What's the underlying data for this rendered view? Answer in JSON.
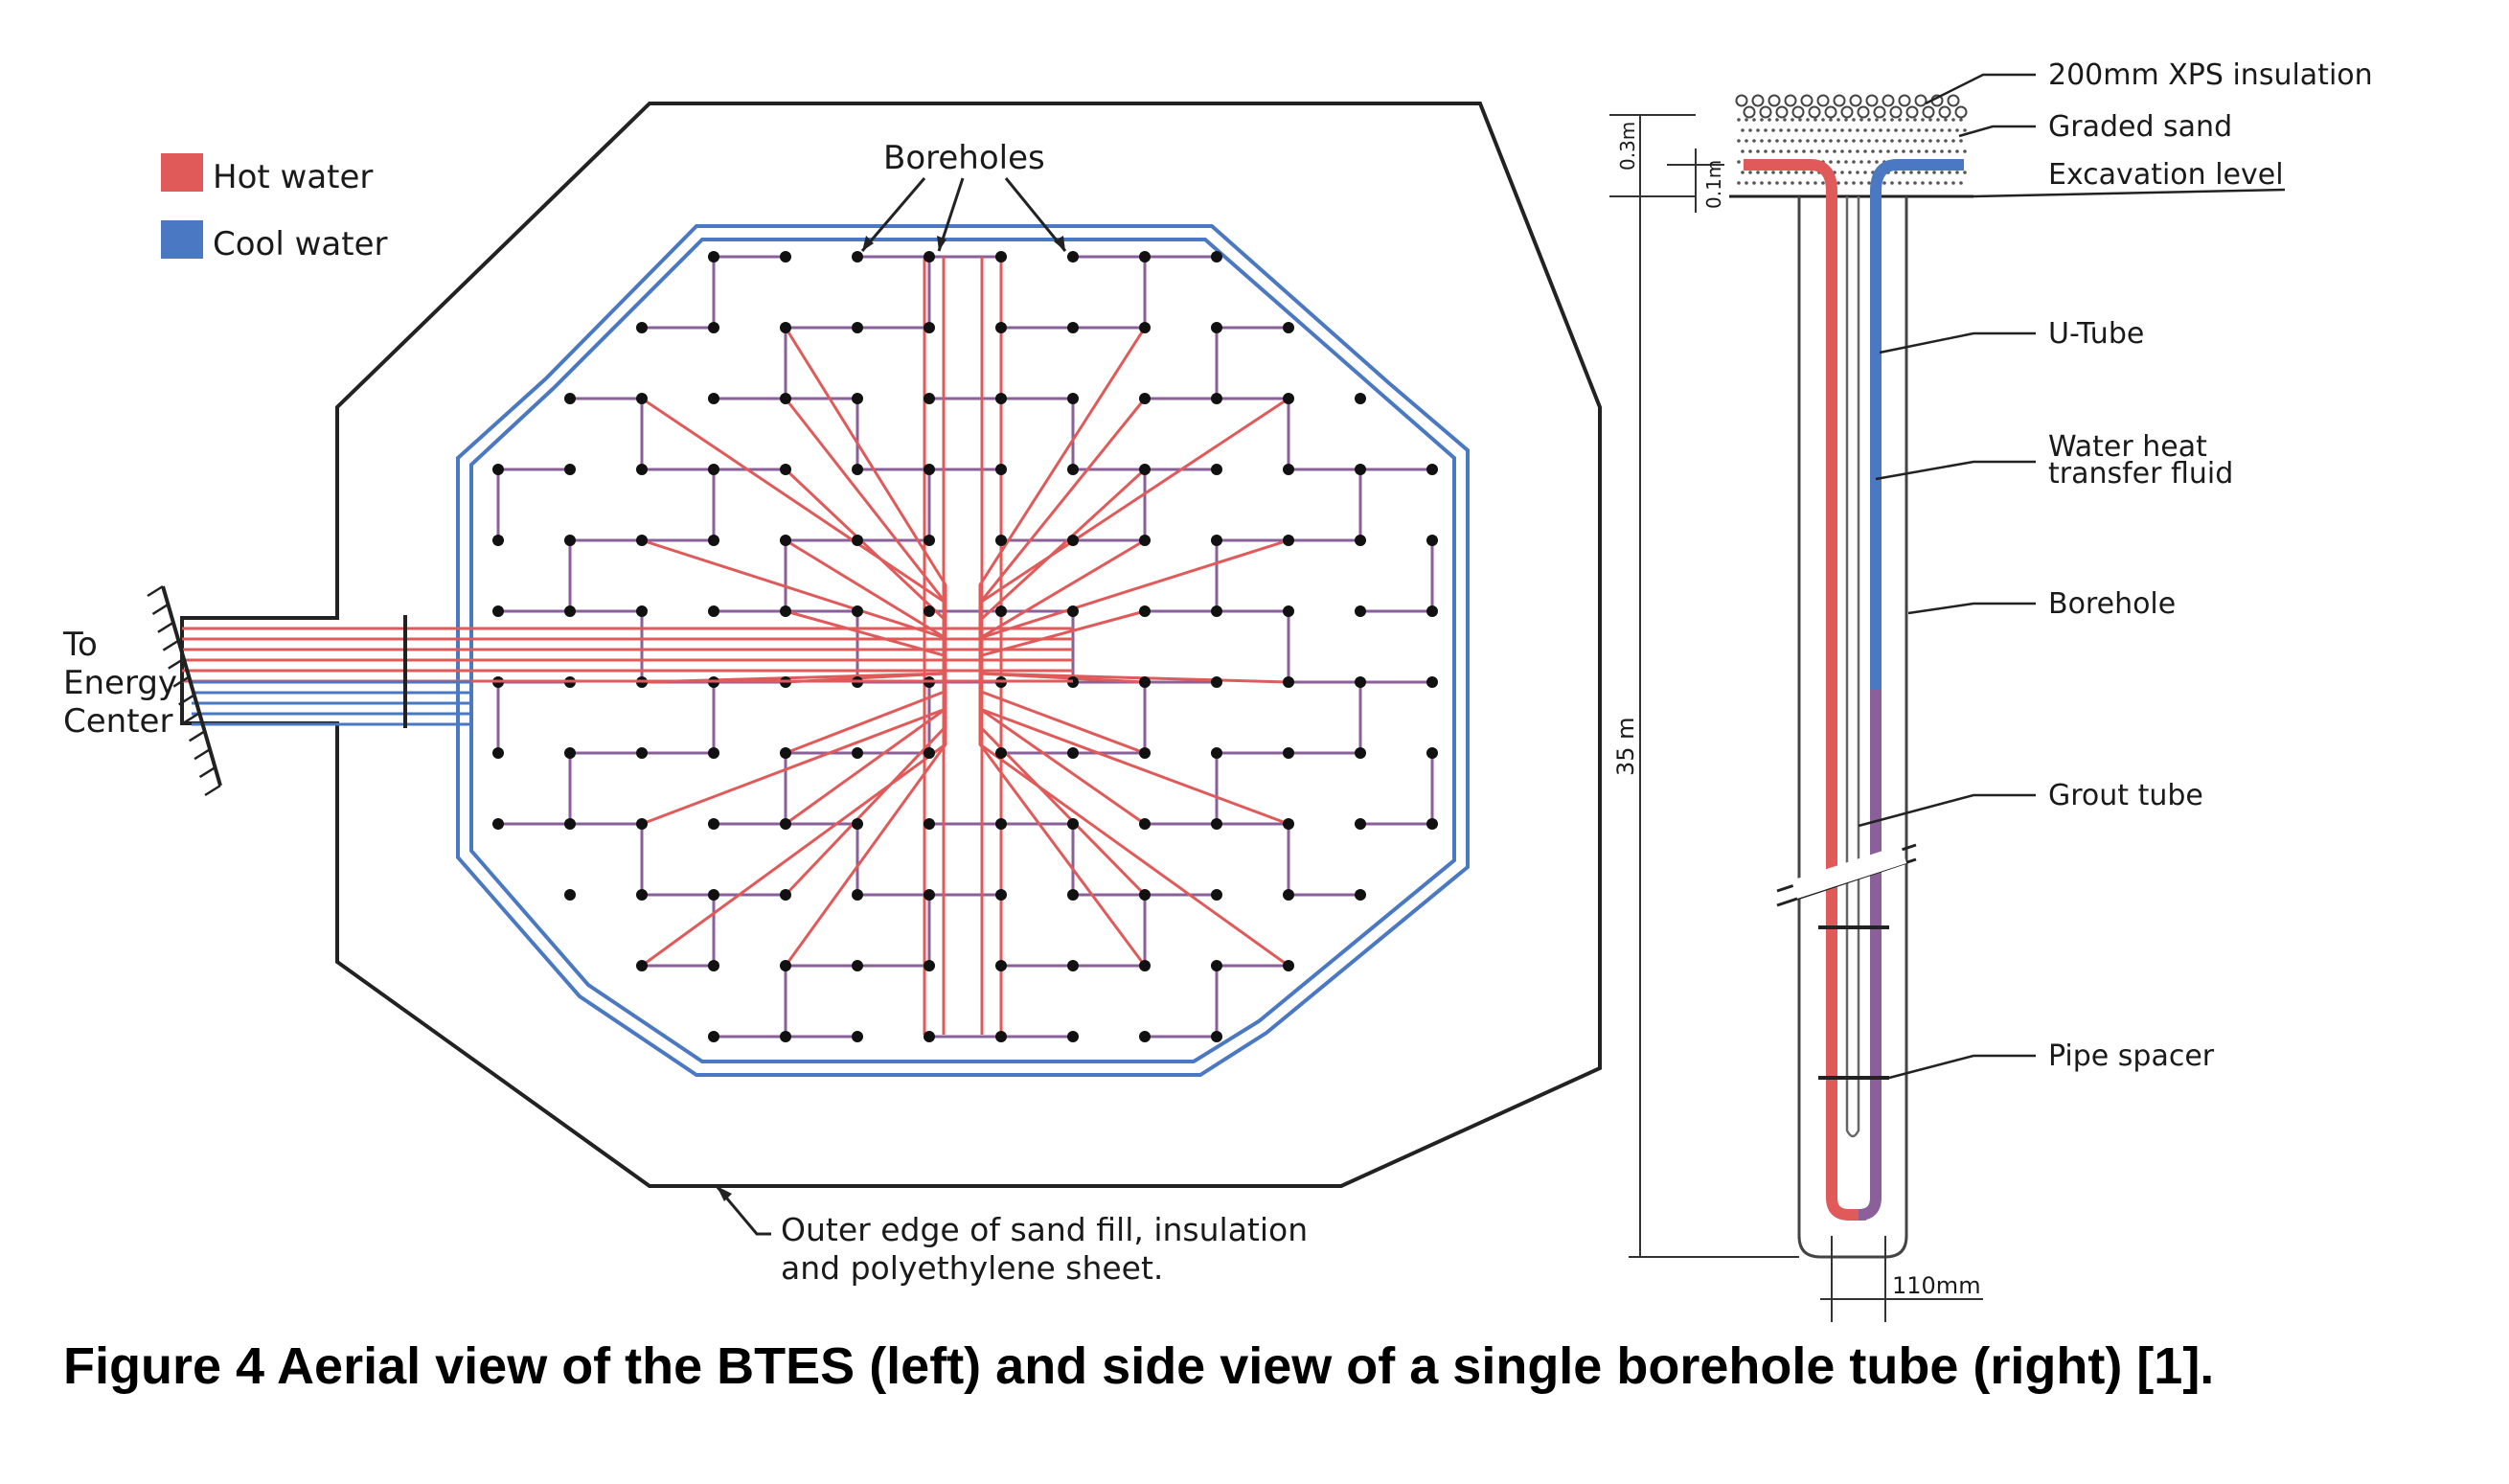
{
  "legend": {
    "items": [
      {
        "label": "Hot water",
        "color": "#e05a5a"
      },
      {
        "label": "Cool water",
        "color": "#4a78c2"
      }
    ]
  },
  "aerial": {
    "boreholes_label": "Boreholes",
    "energy_center_label": [
      "To",
      "Energy",
      "Center"
    ],
    "outer_edge_label": [
      "Outer edge of sand fill, insulation",
      "and polyethylene sheet."
    ]
  },
  "side": {
    "labels": {
      "xps": "200mm XPS insulation",
      "graded_sand": "Graded sand",
      "excavation": "Excavation level",
      "u_tube": "U-Tube",
      "fluid": [
        "Water heat",
        "transfer fluid"
      ],
      "borehole": "Borehole",
      "grout": "Grout tube",
      "spacer": "Pipe spacer"
    },
    "dims": {
      "d03": "0.3m",
      "d01": "0.1m",
      "d35": "35 m",
      "d110": "110mm"
    }
  },
  "colors": {
    "hot": "#e05a5a",
    "cool": "#4a78c2",
    "mixed": "#8a5f9a",
    "line": "#222222"
  },
  "caption": "Figure  4 Aerial view of the BTES (left) and side view of a single borehole tube (right) [1]."
}
